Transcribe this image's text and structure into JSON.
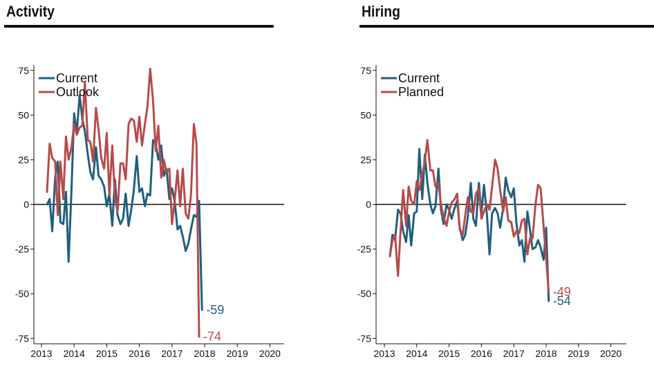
{
  "chart_data": [
    {
      "type": "line",
      "title": "Activity",
      "ylim": [
        -78,
        78
      ],
      "xlim": [
        2012.8,
        2020.55
      ],
      "yticks": [
        75,
        50,
        25,
        0,
        -25,
        -50,
        -75
      ],
      "xticks": [
        2013,
        2014,
        2015,
        2016,
        2017,
        2018,
        2019,
        2020
      ],
      "legend_position": "top-left",
      "series": [
        {
          "name": "Current",
          "color": "#1f5f7e",
          "end_label": "-59",
          "points": [
            [
              2013.17,
              0
            ],
            [
              2013.25,
              3
            ],
            [
              2013.33,
              -15
            ],
            [
              2013.42,
              15
            ],
            [
              2013.5,
              24
            ],
            [
              2013.58,
              -10
            ],
            [
              2013.67,
              -11
            ],
            [
              2013.75,
              7
            ],
            [
              2013.83,
              -32
            ],
            [
              2013.92,
              8
            ],
            [
              2014.0,
              51
            ],
            [
              2014.08,
              40
            ],
            [
              2014.17,
              61
            ],
            [
              2014.25,
              48
            ],
            [
              2014.33,
              41
            ],
            [
              2014.42,
              28
            ],
            [
              2014.5,
              18
            ],
            [
              2014.58,
              14
            ],
            [
              2014.67,
              32
            ],
            [
              2014.75,
              16
            ],
            [
              2014.83,
              14
            ],
            [
              2014.92,
              10
            ],
            [
              2015.0,
              -1
            ],
            [
              2015.08,
              6
            ],
            [
              2015.17,
              -12
            ],
            [
              2015.25,
              14
            ],
            [
              2015.33,
              -6
            ],
            [
              2015.42,
              -11
            ],
            [
              2015.5,
              -8
            ],
            [
              2015.58,
              6
            ],
            [
              2015.67,
              -12
            ],
            [
              2015.75,
              -3
            ],
            [
              2015.83,
              8
            ],
            [
              2015.92,
              27
            ],
            [
              2016.0,
              7
            ],
            [
              2016.08,
              9
            ],
            [
              2016.17,
              -1
            ],
            [
              2016.25,
              6
            ],
            [
              2016.33,
              5
            ],
            [
              2016.42,
              36
            ],
            [
              2016.5,
              34
            ],
            [
              2016.58,
              25
            ],
            [
              2016.67,
              33
            ],
            [
              2016.75,
              16
            ],
            [
              2016.83,
              20
            ],
            [
              2016.92,
              3
            ],
            [
              2017.0,
              9
            ],
            [
              2017.08,
              2
            ],
            [
              2017.17,
              -14
            ],
            [
              2017.25,
              -12
            ],
            [
              2017.33,
              -18
            ],
            [
              2017.42,
              -26
            ],
            [
              2017.5,
              -22
            ],
            [
              2017.58,
              -14
            ],
            [
              2017.67,
              -6
            ],
            [
              2017.75,
              -7
            ],
            [
              2017.83,
              2
            ],
            [
              2017.92,
              -59
            ]
          ]
        },
        {
          "name": "Outlook",
          "color": "#b84a4a",
          "end_label": "-74",
          "points": [
            [
              2013.17,
              7
            ],
            [
              2013.25,
              34
            ],
            [
              2013.33,
              26
            ],
            [
              2013.42,
              24
            ],
            [
              2013.5,
              -6
            ],
            [
              2013.58,
              24
            ],
            [
              2013.67,
              3
            ],
            [
              2013.75,
              38
            ],
            [
              2013.83,
              25
            ],
            [
              2013.92,
              32
            ],
            [
              2014.0,
              45
            ],
            [
              2014.08,
              39
            ],
            [
              2014.17,
              43
            ],
            [
              2014.25,
              44
            ],
            [
              2014.33,
              68
            ],
            [
              2014.42,
              36
            ],
            [
              2014.5,
              35
            ],
            [
              2014.58,
              24
            ],
            [
              2014.67,
              54
            ],
            [
              2014.75,
              42
            ],
            [
              2014.83,
              26
            ],
            [
              2014.92,
              20
            ],
            [
              2015.0,
              40
            ],
            [
              2015.08,
              5
            ],
            [
              2015.17,
              33
            ],
            [
              2015.25,
              4
            ],
            [
              2015.33,
              -4
            ],
            [
              2015.42,
              23
            ],
            [
              2015.5,
              23
            ],
            [
              2015.58,
              14
            ],
            [
              2015.67,
              45
            ],
            [
              2015.75,
              48
            ],
            [
              2015.83,
              47
            ],
            [
              2015.92,
              35
            ],
            [
              2016.0,
              49
            ],
            [
              2016.08,
              33
            ],
            [
              2016.17,
              45
            ],
            [
              2016.25,
              55
            ],
            [
              2016.33,
              76
            ],
            [
              2016.42,
              58
            ],
            [
              2016.5,
              30
            ],
            [
              2016.58,
              44
            ],
            [
              2016.67,
              15
            ],
            [
              2016.75,
              25
            ],
            [
              2016.83,
              18
            ],
            [
              2016.92,
              20
            ],
            [
              2017.0,
              -11
            ],
            [
              2017.08,
              2
            ],
            [
              2017.17,
              19
            ],
            [
              2017.25,
              -1
            ],
            [
              2017.33,
              20
            ],
            [
              2017.42,
              -5
            ],
            [
              2017.5,
              -8
            ],
            [
              2017.58,
              5
            ],
            [
              2017.67,
              45
            ],
            [
              2017.75,
              34
            ],
            [
              2017.83,
              -74
            ]
          ]
        }
      ]
    },
    {
      "type": "line",
      "title": "Hiring",
      "ylim": [
        -78,
        78
      ],
      "xlim": [
        2012.8,
        2020.55
      ],
      "yticks": [
        75,
        50,
        25,
        0,
        -25,
        -50,
        -75
      ],
      "xticks": [
        2013,
        2014,
        2015,
        2016,
        2017,
        2018,
        2019,
        2020
      ],
      "legend_position": "top-left",
      "series": [
        {
          "name": "Current",
          "color": "#1f5f7e",
          "end_label": "-54",
          "points": [
            [
              2013.17,
              -29
            ],
            [
              2013.25,
              -17
            ],
            [
              2013.33,
              -20
            ],
            [
              2013.42,
              -3
            ],
            [
              2013.5,
              -5
            ],
            [
              2013.58,
              -15
            ],
            [
              2013.67,
              -21
            ],
            [
              2013.75,
              -6
            ],
            [
              2013.83,
              -23
            ],
            [
              2013.92,
              -5
            ],
            [
              2014.0,
              -4
            ],
            [
              2014.08,
              31
            ],
            [
              2014.17,
              3
            ],
            [
              2014.25,
              28
            ],
            [
              2014.33,
              12
            ],
            [
              2014.42,
              0
            ],
            [
              2014.5,
              -5
            ],
            [
              2014.58,
              -1
            ],
            [
              2014.67,
              20
            ],
            [
              2014.75,
              -3
            ],
            [
              2014.83,
              -11
            ],
            [
              2014.92,
              0
            ],
            [
              2015.0,
              -3
            ],
            [
              2015.08,
              -8
            ],
            [
              2015.17,
              -2
            ],
            [
              2015.25,
              2
            ],
            [
              2015.33,
              -13
            ],
            [
              2015.42,
              -20
            ],
            [
              2015.5,
              -17
            ],
            [
              2015.58,
              -7
            ],
            [
              2015.67,
              12
            ],
            [
              2015.75,
              -8
            ],
            [
              2015.83,
              -12
            ],
            [
              2015.92,
              12
            ],
            [
              2016.0,
              -5
            ],
            [
              2016.08,
              11
            ],
            [
              2016.17,
              -6
            ],
            [
              2016.25,
              -28
            ],
            [
              2016.33,
              -5
            ],
            [
              2016.42,
              -2
            ],
            [
              2016.5,
              -5
            ],
            [
              2016.58,
              -13
            ],
            [
              2016.67,
              -2
            ],
            [
              2016.75,
              15
            ],
            [
              2016.83,
              8
            ],
            [
              2016.92,
              4
            ],
            [
              2017.0,
              9
            ],
            [
              2017.08,
              -10
            ],
            [
              2017.17,
              -23
            ],
            [
              2017.25,
              -20
            ],
            [
              2017.33,
              -32
            ],
            [
              2017.42,
              -4
            ],
            [
              2017.5,
              -14
            ],
            [
              2017.58,
              -25
            ],
            [
              2017.67,
              -24
            ],
            [
              2017.75,
              -20
            ],
            [
              2017.83,
              -24
            ],
            [
              2017.92,
              -31
            ],
            [
              2018.0,
              -13
            ],
            [
              2018.08,
              -54
            ]
          ]
        },
        {
          "name": "Planned",
          "color": "#b84a4a",
          "end_label": "-49",
          "points": [
            [
              2013.17,
              -29
            ],
            [
              2013.25,
              -20
            ],
            [
              2013.33,
              -17
            ],
            [
              2013.42,
              -40
            ],
            [
              2013.5,
              -15
            ],
            [
              2013.58,
              8
            ],
            [
              2013.67,
              -12
            ],
            [
              2013.75,
              10
            ],
            [
              2013.83,
              2
            ],
            [
              2013.92,
              0
            ],
            [
              2014.0,
              13
            ],
            [
              2014.08,
              8
            ],
            [
              2014.17,
              17
            ],
            [
              2014.25,
              24
            ],
            [
              2014.33,
              36
            ],
            [
              2014.42,
              19
            ],
            [
              2014.5,
              19
            ],
            [
              2014.58,
              10
            ],
            [
              2014.67,
              12
            ],
            [
              2014.75,
              0
            ],
            [
              2014.83,
              -7
            ],
            [
              2014.92,
              -12
            ],
            [
              2015.0,
              -4
            ],
            [
              2015.08,
              1
            ],
            [
              2015.17,
              3
            ],
            [
              2015.25,
              6
            ],
            [
              2015.33,
              -14
            ],
            [
              2015.42,
              -17
            ],
            [
              2015.5,
              -6
            ],
            [
              2015.58,
              4
            ],
            [
              2015.67,
              -4
            ],
            [
              2015.75,
              -5
            ],
            [
              2015.83,
              6
            ],
            [
              2015.92,
              9
            ],
            [
              2016.0,
              -8
            ],
            [
              2016.08,
              -4
            ],
            [
              2016.17,
              0
            ],
            [
              2016.25,
              -3
            ],
            [
              2016.33,
              10
            ],
            [
              2016.42,
              25
            ],
            [
              2016.5,
              20
            ],
            [
              2016.58,
              8
            ],
            [
              2016.67,
              -4
            ],
            [
              2016.75,
              4
            ],
            [
              2016.83,
              -9
            ],
            [
              2016.92,
              -10
            ],
            [
              2017.0,
              -18
            ],
            [
              2017.08,
              -15
            ],
            [
              2017.17,
              -16
            ],
            [
              2017.25,
              -9
            ],
            [
              2017.33,
              -8
            ],
            [
              2017.42,
              -28
            ],
            [
              2017.5,
              -19
            ],
            [
              2017.58,
              -19
            ],
            [
              2017.67,
              0
            ],
            [
              2017.75,
              11
            ],
            [
              2017.83,
              9
            ],
            [
              2018.08,
              -49
            ]
          ]
        }
      ]
    }
  ]
}
